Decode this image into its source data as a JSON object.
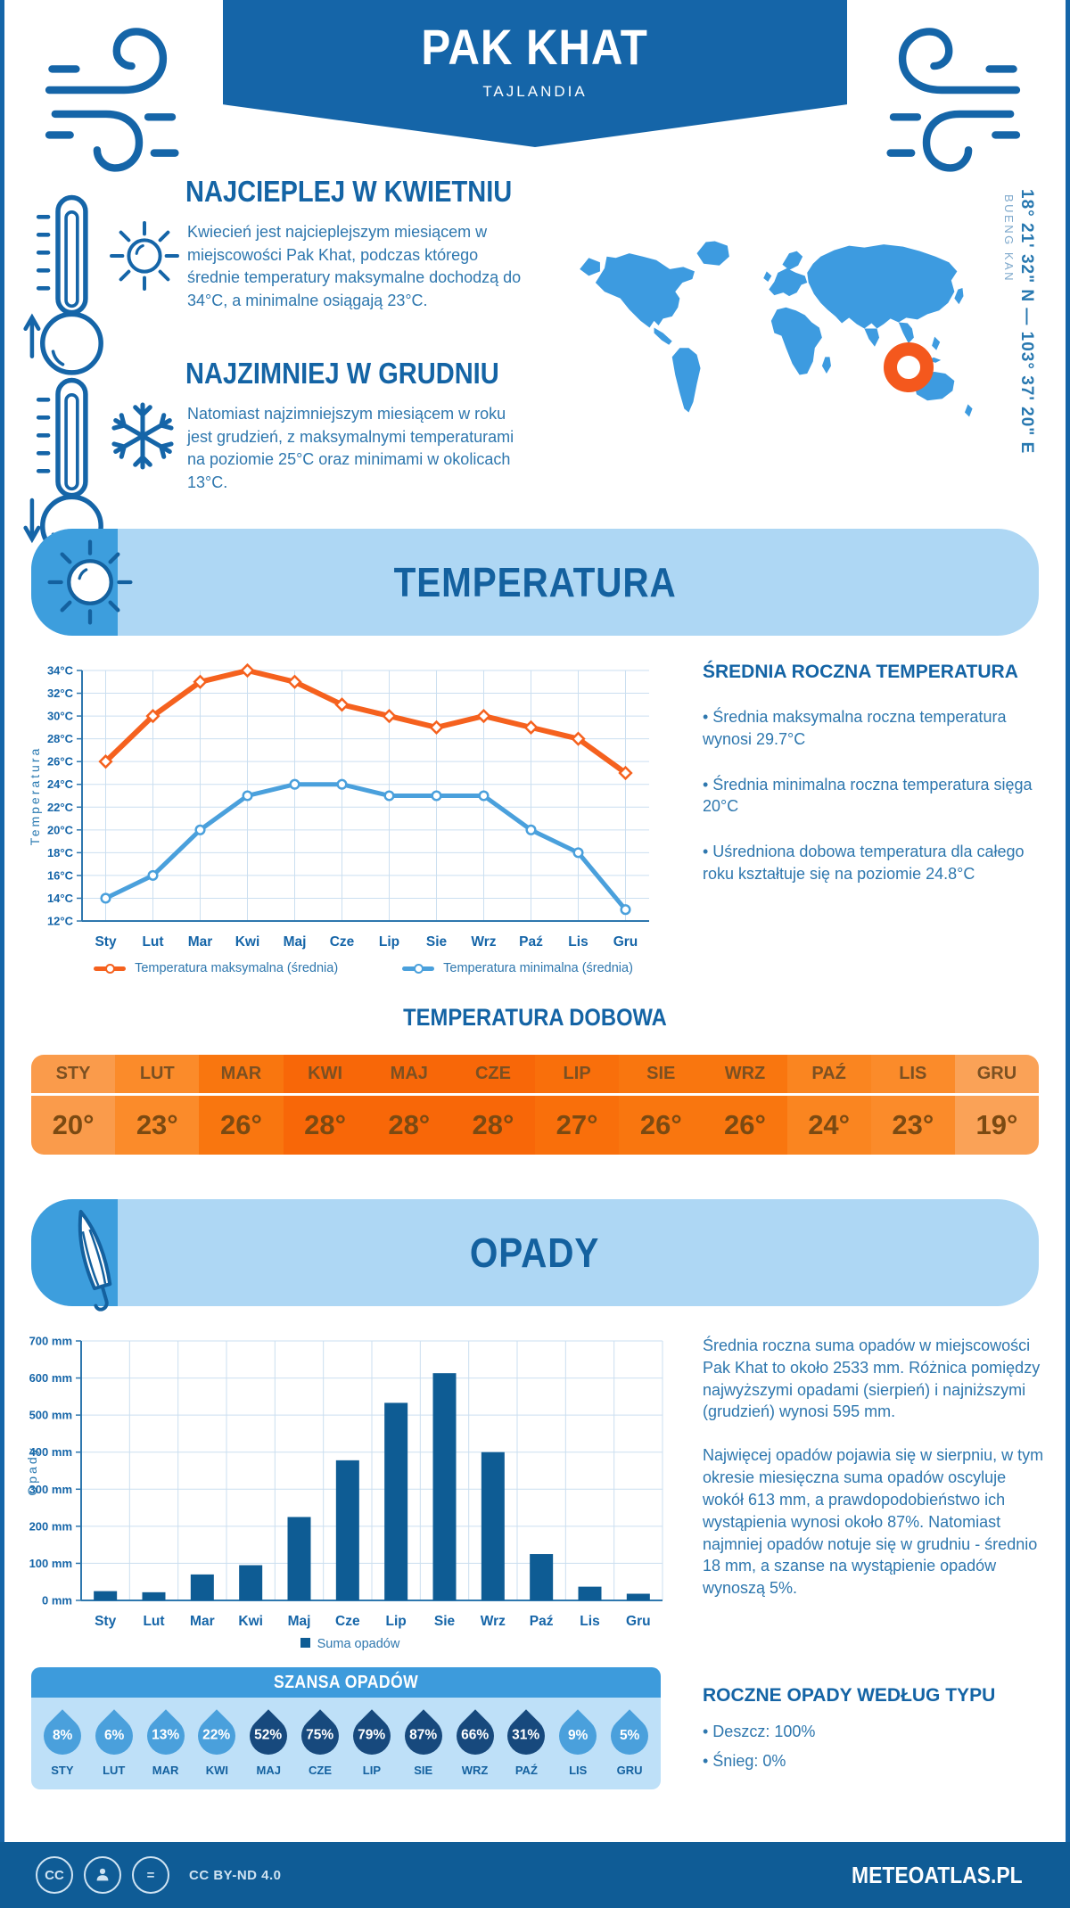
{
  "header": {
    "title": "PAK KHAT",
    "subtitle": "TAJLANDIA"
  },
  "location": {
    "coordinates": "18° 21' 32\" N — 103° 37' 20\" E",
    "region": "BUENG KAN"
  },
  "highlights": [
    {
      "heading": "NAJCIEPLEJ W KWIETNIU",
      "text": "Kwiecień jest najcieplejszym miesiącem w miejscowości Pak Khat, podczas którego średnie temperatury maksymalne dochodzą do 34°C, a minimalne osiągają 23°C."
    },
    {
      "heading": "NAJZIMNIEJ W GRUDNIU",
      "text": "Natomiast najzimniejszym miesiącem w roku jest grudzień, z maksymalnymi temperaturami na poziomie 25°C oraz minimami w okolicach 13°C."
    }
  ],
  "sections": {
    "temperature": "TEMPERATURA",
    "precipitation": "OPADY"
  },
  "annual": {
    "heading": "ŚREDNIA ROCZNA TEMPERATURA",
    "bullets": [
      "• Średnia maksymalna roczna temperatura wynosi 29.7°C",
      "• Średnia minimalna roczna temperatura sięga 20°C",
      "• Uśredniona dobowa temperatura dla całego roku kształtuje się na poziomie 24.8°C"
    ]
  },
  "daily": {
    "heading": "TEMPERATURA DOBOWA",
    "months": [
      "STY",
      "LUT",
      "MAR",
      "KWI",
      "MAJ",
      "CZE",
      "LIP",
      "SIE",
      "WRZ",
      "PAŹ",
      "LIS",
      "GRU"
    ],
    "values": [
      "20°",
      "23°",
      "26°",
      "28°",
      "28°",
      "28°",
      "27°",
      "26°",
      "26°",
      "24°",
      "23°",
      "19°"
    ],
    "colors": [
      "#FA9B4B",
      "#FB8B2A",
      "#F9760F",
      "#F86708",
      "#F86708",
      "#F86708",
      "#F96F0B",
      "#F9760F",
      "#F9760F",
      "#FA8520",
      "#FB8B2A",
      "#FAA257"
    ]
  },
  "chart_data": [
    {
      "type": "line",
      "x": [
        "Sty",
        "Lut",
        "Mar",
        "Kwi",
        "Maj",
        "Cze",
        "Lip",
        "Sie",
        "Wrz",
        "Paź",
        "Lis",
        "Gru"
      ],
      "ylabel": "Temperatura",
      "ylim": [
        12,
        34
      ],
      "ytick_step": 2,
      "ytick_suffix": "°C",
      "grid": true,
      "legend_position": "bottom",
      "series": [
        {
          "name": "Temperatura maksymalna (średnia)",
          "color": "#F5611E",
          "values": [
            26,
            30,
            33,
            34,
            33,
            31,
            30,
            29,
            30,
            29,
            28,
            25
          ]
        },
        {
          "name": "Temperatura minimalna (średnia)",
          "color": "#4AA0DC",
          "values": [
            14,
            16,
            20,
            23,
            24,
            24,
            23,
            23,
            23,
            20,
            18,
            13
          ]
        }
      ]
    },
    {
      "type": "bar",
      "name": "Suma opadów",
      "categories": [
        "Sty",
        "Lut",
        "Mar",
        "Kwi",
        "Maj",
        "Cze",
        "Lip",
        "Sie",
        "Wrz",
        "Paź",
        "Lis",
        "Gru"
      ],
      "values": [
        25,
        22,
        70,
        95,
        225,
        378,
        533,
        613,
        400,
        125,
        37,
        18
      ],
      "ylabel": "Opady",
      "ylim": [
        0,
        700
      ],
      "ytick_step": 100,
      "ytick_suffix": " mm",
      "grid": true,
      "color": "#0E5C94"
    }
  ],
  "precip": {
    "p1": "Średnia roczna suma opadów w miejscowości Pak Khat to około 2533 mm. Różnica pomiędzy najwyższymi opadami (sierpień) i najniższymi (grudzień) wynosi 595 mm.",
    "p2": "Najwięcej opadów pojawia się w sierpniu, w tym okresie miesięczna suma opadów oscyluje wokół 613 mm, a prawdopodobieństwo ich wystąpienia wynosi około 87%. Natomiast najmniej opadów notuje się w grudniu - średnio 18 mm, a szanse na wystąpienie opadów wynoszą 5%."
  },
  "ptype": {
    "heading": "ROCZNE OPADY WEDŁUG TYPU",
    "bullets": [
      "• Deszcz: 100%",
      "• Śnieg: 0%"
    ]
  },
  "rain_chance": {
    "title": "SZANSA OPADÓW",
    "months": [
      "STY",
      "LUT",
      "MAR",
      "KWI",
      "MAJ",
      "CZE",
      "LIP",
      "SIE",
      "WRZ",
      "PAŹ",
      "LIS",
      "GRU"
    ],
    "values": [
      "8%",
      "6%",
      "13%",
      "22%",
      "52%",
      "75%",
      "79%",
      "87%",
      "66%",
      "31%",
      "9%",
      "5%"
    ],
    "dark": [
      false,
      false,
      false,
      false,
      true,
      true,
      true,
      true,
      true,
      true,
      false,
      false
    ],
    "color_low": "#4AA0DC",
    "color_high": "#17497D"
  },
  "footer": {
    "license": "CC BY-ND 4.0",
    "site": "METEOATLAS.PL"
  },
  "colors": {
    "primary_blue": "#1565A8",
    "heading_blue": "#1464A5",
    "text_blue": "#2E77AE",
    "banner_light": "#AED7F4",
    "banner_cap": "#3D9EDD",
    "map_blue": "#3D9BE0",
    "marker_orange": "#F4581D",
    "line_max": "#F5611E",
    "line_min": "#4AA0DC",
    "bar_blue": "#0E5C94",
    "grid": "#CBDFF0"
  }
}
